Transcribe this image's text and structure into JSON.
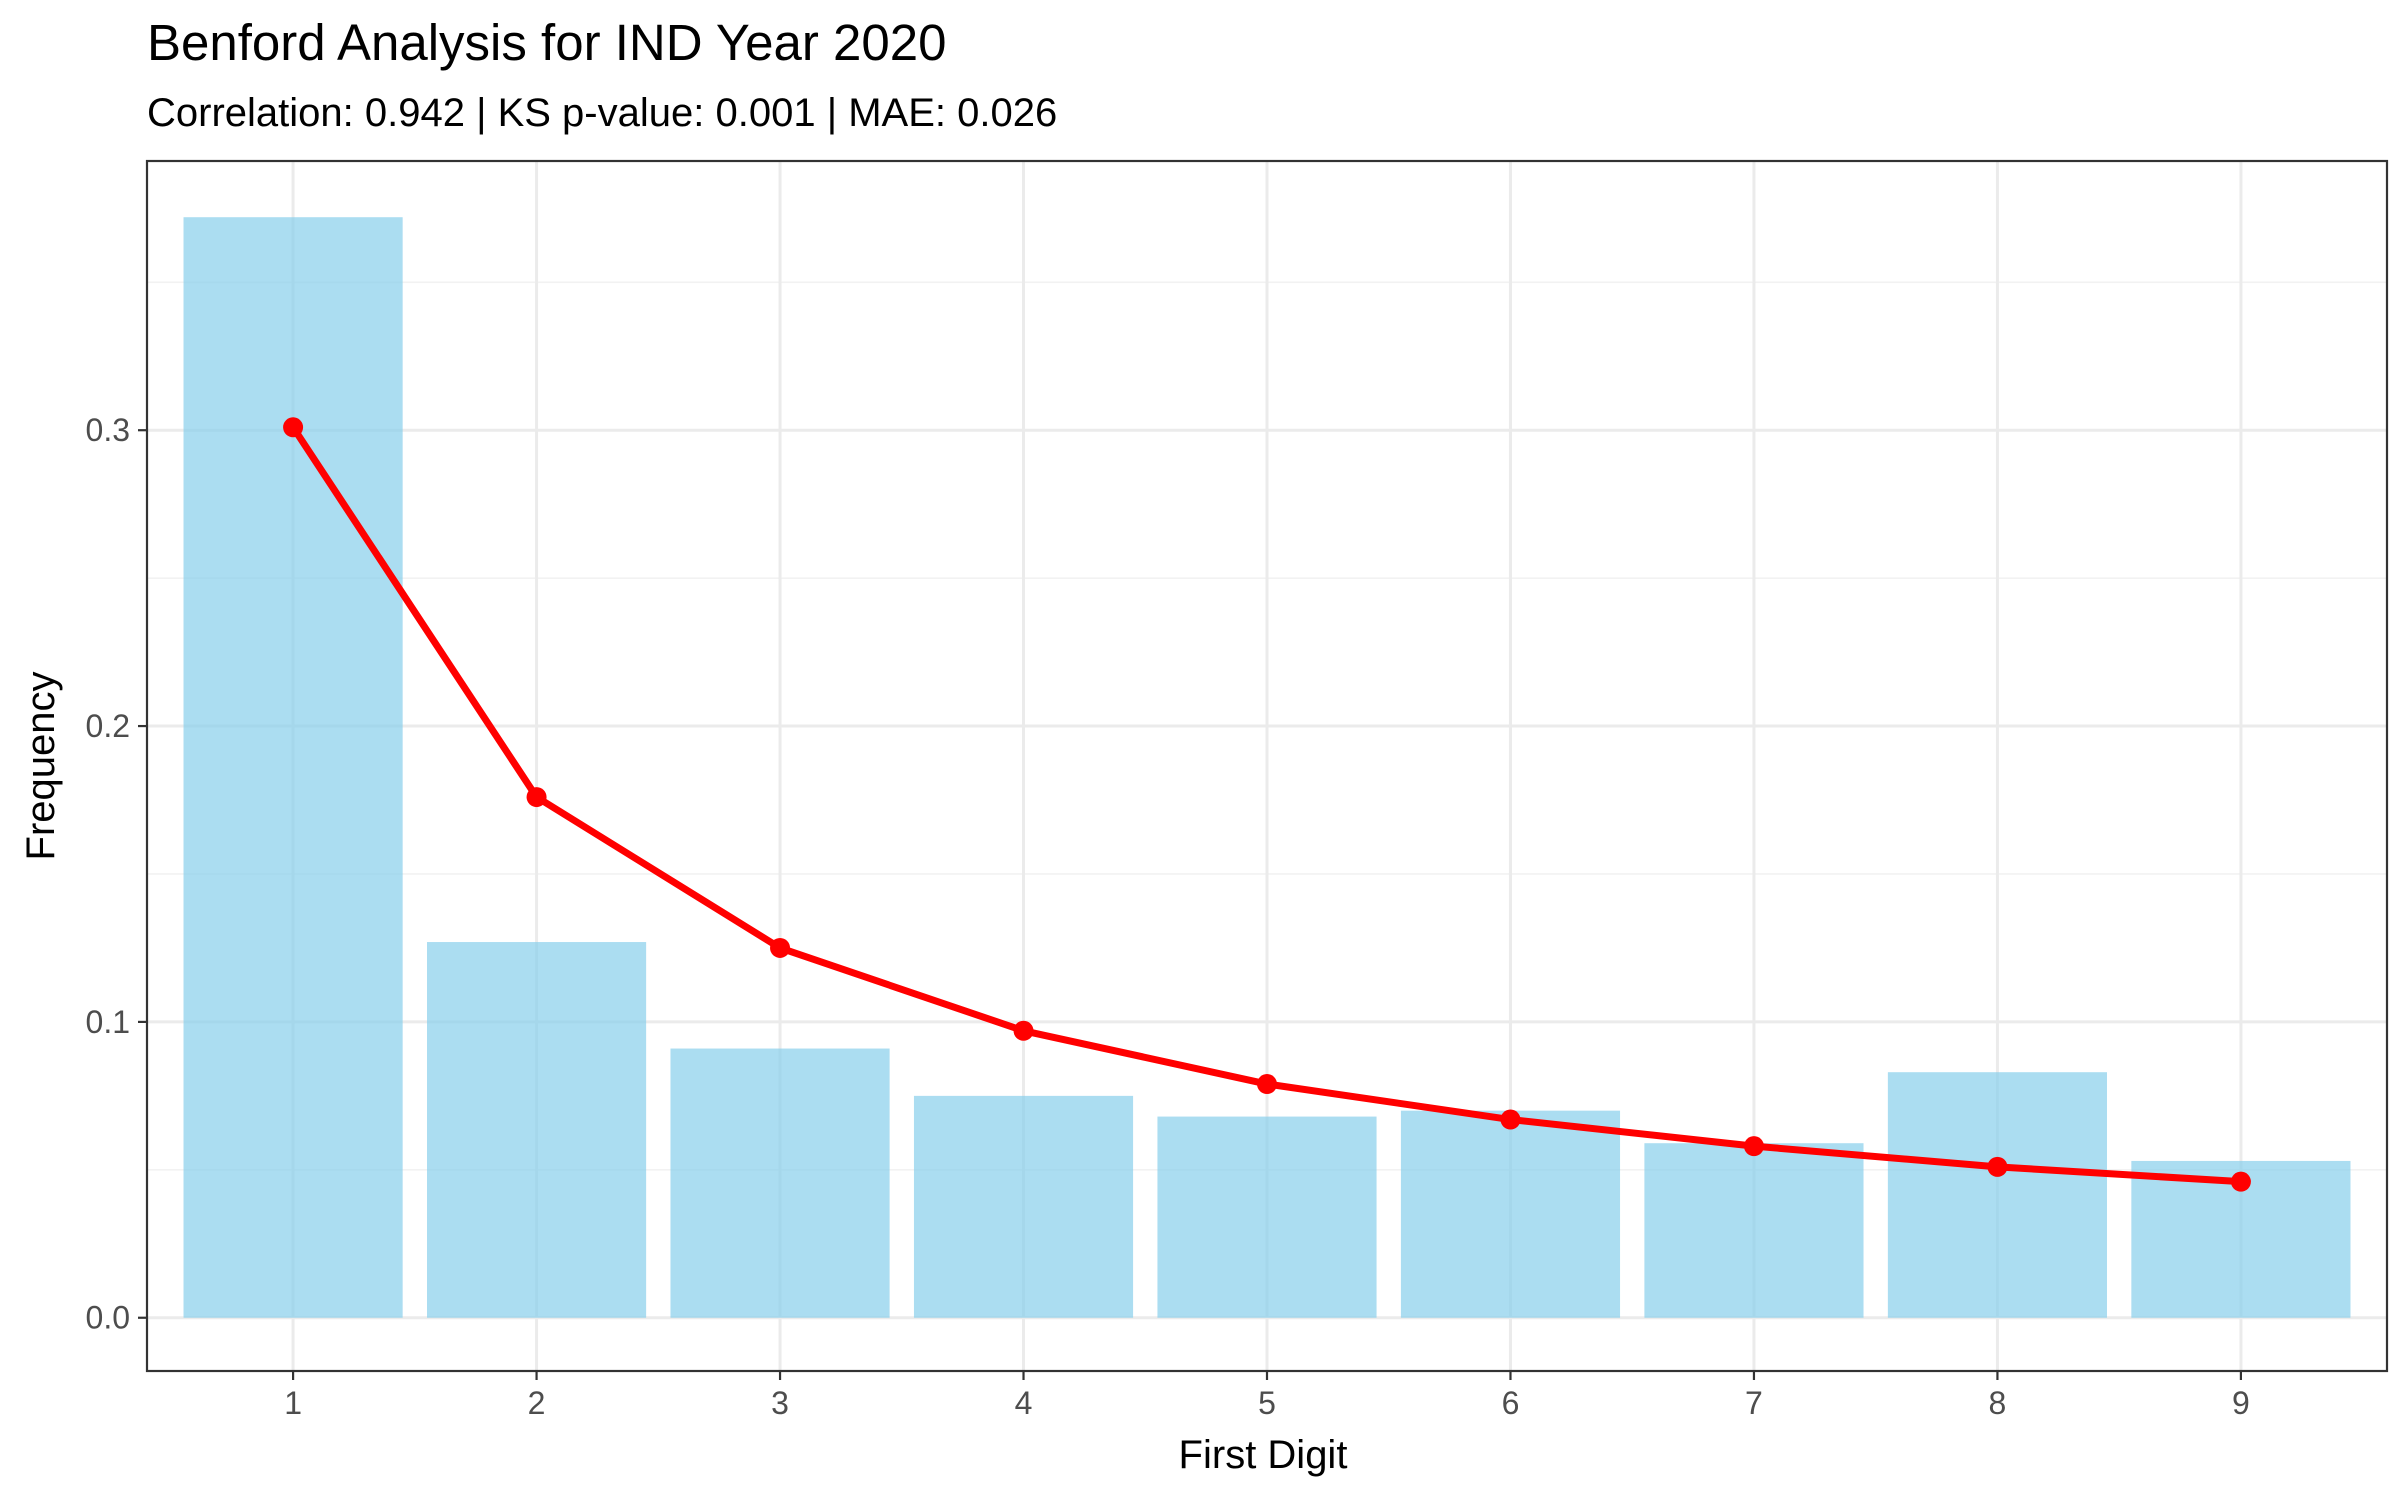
{
  "chart_data": {
    "type": "bar",
    "title": "Benford Analysis for IND Year 2020",
    "subtitle": "Correlation: 0.942 | KS p-value: 0.001 | MAE: 0.026",
    "xlabel": "First Digit",
    "ylabel": "Frequency",
    "categories": [
      "1",
      "2",
      "3",
      "4",
      "5",
      "6",
      "7",
      "8",
      "9"
    ],
    "xlim": [
      0.4,
      9.6
    ],
    "ylim": [
      -0.018,
      0.391
    ],
    "y_ticks": [
      0.0,
      0.1,
      0.2,
      0.3
    ],
    "y_tick_labels": [
      "0.0",
      "0.1",
      "0.2",
      "0.3"
    ],
    "grid": true,
    "legend": "none",
    "series": [
      {
        "kind": "bar",
        "color": "#87CEEB",
        "values": [
          0.372,
          0.127,
          0.091,
          0.075,
          0.068,
          0.07,
          0.059,
          0.083,
          0.053
        ]
      },
      {
        "kind": "line",
        "color": "#FF0000",
        "values": [
          0.301,
          0.176,
          0.125,
          0.097,
          0.079,
          0.067,
          0.058,
          0.051,
          0.046
        ]
      }
    ]
  }
}
